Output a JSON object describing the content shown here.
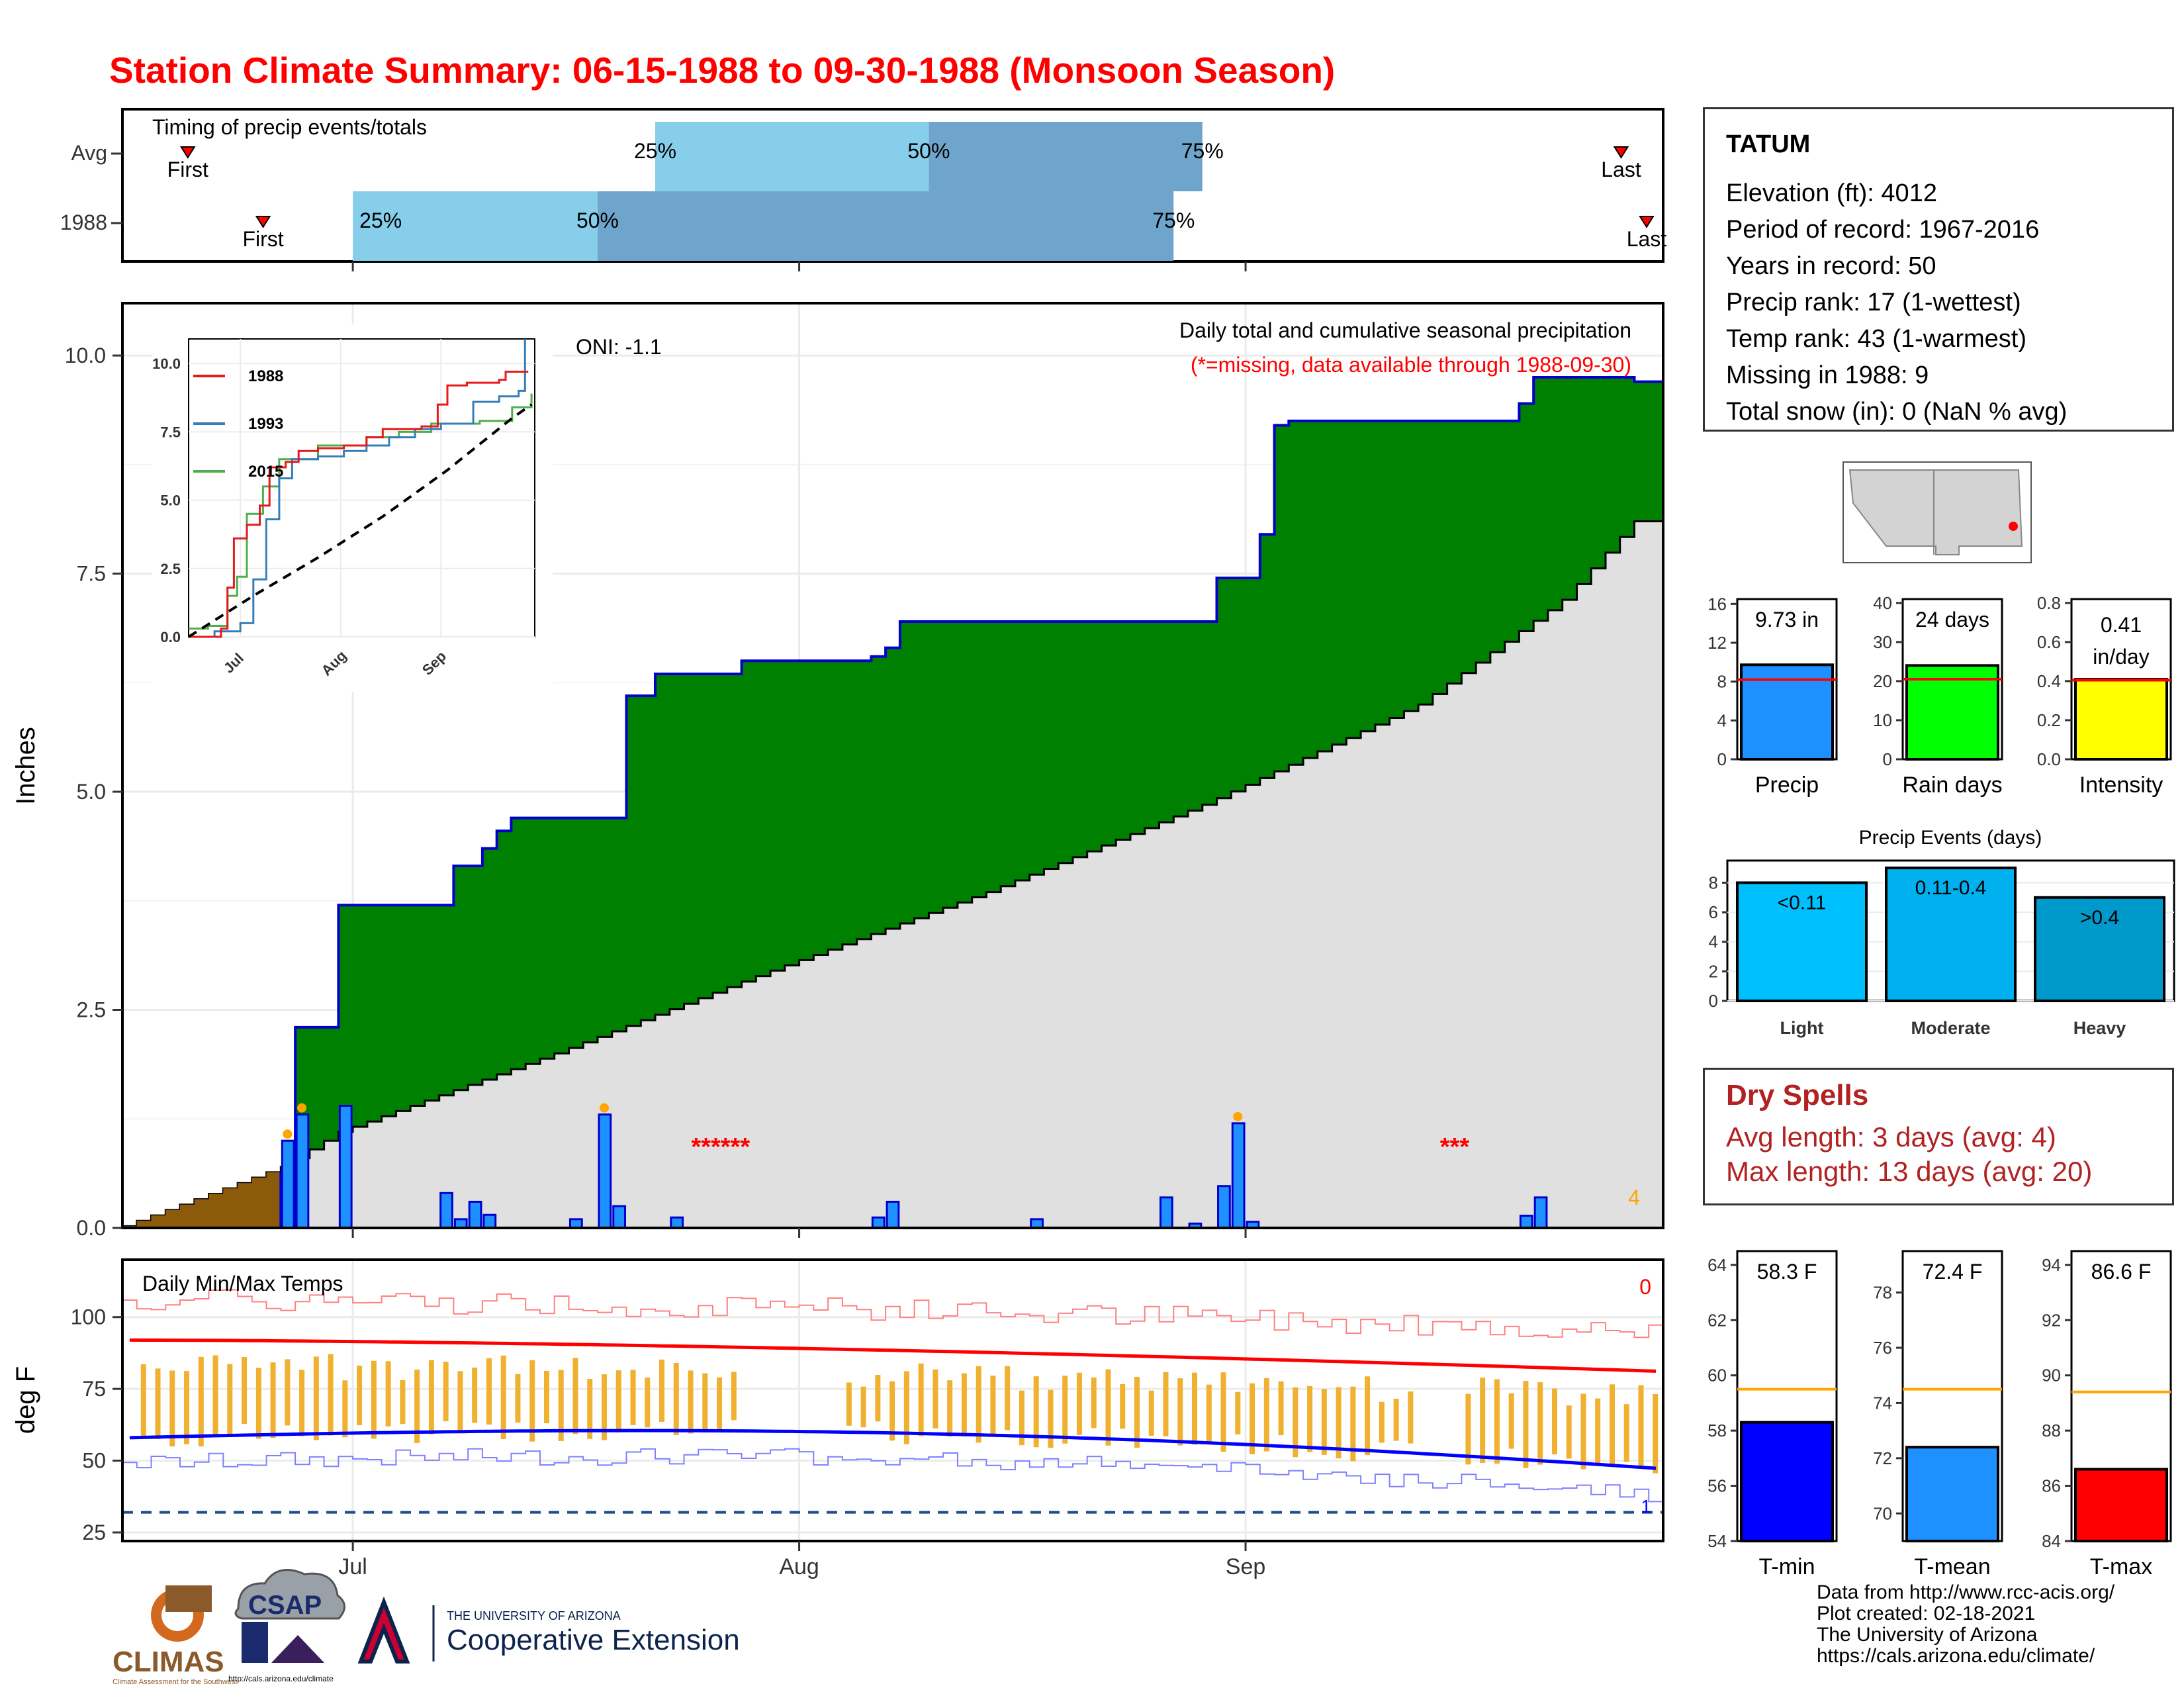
{
  "title": "Station Climate Summary: 06-15-1988 to 09-30-1988 (Monsoon Season)",
  "chart_data": [
    {
      "type": "timeline",
      "name": "Timing of precip events/totals",
      "title": "Timing of precip events/totals",
      "rows": [
        {
          "label": "Avg",
          "first": "06-20",
          "p25": "07-22",
          "p50": "08-10",
          "p75": "08-29",
          "last": "09-28",
          "first_label": "First",
          "last_label": "Last"
        },
        {
          "label": "1988",
          "first": "06-25",
          "p25": "07-01",
          "p50": "07-18",
          "p75": "08-27",
          "last": "09-30",
          "first_label": "First",
          "last_label": "Last"
        }
      ],
      "pct_labels": [
        "25%",
        "50%",
        "75%"
      ]
    },
    {
      "type": "area",
      "title": "Daily total and cumulative seasonal precipitation",
      "subtitle": "(*=missing, data available through 1988-09-30)",
      "ylabel": "Inches",
      "oni": "ONI: -1.1",
      "ylim": [
        0,
        10.6
      ],
      "yticks": [
        "0.0",
        "2.5",
        "5.0",
        "7.5",
        "10.0"
      ],
      "xticks": [
        "Jul",
        "Aug",
        "Sep"
      ],
      "start": "1988-06-15",
      "cumulative_1988": [
        [
          0,
          0
        ],
        [
          11,
          0
        ],
        [
          12,
          2.3
        ],
        [
          15,
          2.3
        ],
        [
          15,
          3.7
        ],
        [
          22,
          3.7
        ],
        [
          23,
          4.15
        ],
        [
          24,
          4.15
        ],
        [
          25,
          4.35
        ],
        [
          26,
          4.55
        ],
        [
          27,
          4.7
        ],
        [
          34,
          4.7
        ],
        [
          35,
          4.72
        ],
        [
          35,
          6.1
        ],
        [
          37,
          6.35
        ],
        [
          42,
          6.35
        ],
        [
          43,
          6.5
        ],
        [
          51,
          6.5
        ],
        [
          52,
          6.55
        ],
        [
          53,
          6.65
        ],
        [
          54,
          6.95
        ],
        [
          71,
          6.95
        ],
        [
          72,
          6.95
        ],
        [
          76,
          7.45
        ],
        [
          77,
          7.45
        ],
        [
          79,
          7.95
        ],
        [
          80,
          9.2
        ],
        [
          81,
          9.25
        ],
        [
          88,
          9.25
        ],
        [
          96,
          9.25
        ],
        [
          97,
          9.45
        ],
        [
          98,
          9.75
        ],
        [
          105,
          9.7
        ]
      ],
      "normal_cumulative": [
        [
          0,
          0.02
        ],
        [
          11,
          0.7
        ],
        [
          15,
          1.1
        ],
        [
          30,
          2.0
        ],
        [
          45,
          2.95
        ],
        [
          60,
          3.85
        ],
        [
          75,
          4.85
        ],
        [
          90,
          6.0
        ],
        [
          100,
          7.2
        ],
        [
          105,
          8.1
        ]
      ],
      "daily_precip": [
        [
          11,
          1.0
        ],
        [
          12,
          1.3
        ],
        [
          15,
          1.4
        ],
        [
          22,
          0.4
        ],
        [
          23,
          0.1
        ],
        [
          24,
          0.3
        ],
        [
          25,
          0.15
        ],
        [
          31,
          0.1
        ],
        [
          33,
          1.3
        ],
        [
          34,
          0.25
        ],
        [
          38,
          0.12
        ],
        [
          52,
          0.12
        ],
        [
          53,
          0.3
        ],
        [
          63,
          0.1
        ],
        [
          72,
          0.35
        ],
        [
          74,
          0.05
        ],
        [
          76,
          0.48
        ],
        [
          77,
          1.2
        ],
        [
          78,
          0.07
        ],
        [
          97,
          0.14
        ],
        [
          98,
          0.35
        ]
      ],
      "missing_markers": [
        "******",
        "***"
      ],
      "corner_value": "4",
      "inset": {
        "type": "line",
        "yticks": [
          "0.0",
          "2.5",
          "5.0",
          "7.5",
          "10.0"
        ],
        "xticks": [
          "Jul",
          "Aug",
          "Sep"
        ],
        "series": [
          {
            "name": "1988",
            "color": "#e41a1c"
          },
          {
            "name": "1993",
            "color": "#377eb8"
          },
          {
            "name": "2015",
            "color": "#4daf4a"
          }
        ]
      }
    },
    {
      "type": "line",
      "title": "Daily Min/Max Temps",
      "ylabel": "deg F",
      "ylim": [
        22,
        120
      ],
      "yticks": [
        "25",
        "50",
        "75",
        "100"
      ],
      "xticks": [
        "Jul",
        "Aug",
        "Sep"
      ],
      "corner_top": "0",
      "corner_bottom": "1",
      "avg_max_start": 92,
      "avg_max_end": 81,
      "avg_min_start": 58,
      "avg_min_end": 47,
      "freeze_line": 32
    },
    {
      "type": "bar",
      "name": "season-totals",
      "panels": [
        {
          "label": "Precip",
          "value_label": "9.73 in",
          "value": 9.73,
          "avg": 8.2,
          "ylim": [
            0,
            16.5
          ],
          "yticks": [
            "0",
            "4",
            "8",
            "12",
            "16"
          ],
          "color": "#1e90ff"
        },
        {
          "label": "Rain days",
          "value_label": "24 days",
          "value": 24,
          "avg": 20.5,
          "ylim": [
            0,
            41
          ],
          "yticks": [
            "0",
            "10",
            "20",
            "30",
            "40"
          ],
          "color": "#00ff00"
        },
        {
          "label": "Intensity",
          "value_label": "0.41 in/day",
          "value": 0.41,
          "avg": 0.405,
          "ylim": [
            0,
            0.82
          ],
          "yticks": [
            "0.0",
            "0.2",
            "0.4",
            "0.6",
            "0.8"
          ],
          "color": "#ffff00"
        }
      ]
    },
    {
      "type": "bar",
      "title": "Precip Events (days)",
      "categories": [
        "Light",
        "Moderate",
        "Heavy"
      ],
      "value_labels": [
        "<0.11",
        "0.11-0.4",
        ">0.4"
      ],
      "values": [
        8,
        9,
        7
      ],
      "ylim": [
        0,
        9.5
      ],
      "yticks": [
        "0",
        "2",
        "4",
        "6",
        "8"
      ]
    },
    {
      "type": "bar",
      "name": "temperature-means",
      "panels": [
        {
          "label": "T-min",
          "value_label": "58.3 F",
          "value": 58.3,
          "avg": 59.5,
          "ylim": [
            54,
            64.5
          ],
          "yticks": [
            "54",
            "56",
            "58",
            "60",
            "62",
            "64"
          ],
          "color": "#0000ff"
        },
        {
          "label": "T-mean",
          "value_label": "72.4 F",
          "value": 72.4,
          "avg": 74.5,
          "ylim": [
            69,
            79.5
          ],
          "yticks": [
            "70",
            "72",
            "74",
            "76",
            "78"
          ],
          "color": "#1e90ff"
        },
        {
          "label": "T-max",
          "value_label": "86.6 F",
          "value": 86.6,
          "avg": 89.4,
          "ylim": [
            84,
            94.5
          ],
          "yticks": [
            "84",
            "86",
            "88",
            "90",
            "92",
            "94"
          ],
          "color": "#ff0000"
        }
      ]
    }
  ],
  "station": {
    "name": "TATUM",
    "lines": [
      "Elevation (ft): 4012",
      "Period of record: 1967-2016",
      "Years in record: 50",
      "Precip rank: 17 (1-wettest)",
      "Temp rank: 43 (1-warmest)",
      "Missing in 1988: 9",
      "Total snow (in): 0 (NaN % avg)"
    ]
  },
  "dry_spells": {
    "title": "Dry Spells",
    "avg": "Avg length: 3 days (avg: 4)",
    "max": "Max length: 13 days (avg: 20)"
  },
  "logos": {
    "climas": "CLIMAS",
    "climas_sub": "Climate Assessment for the Southwest",
    "csap": "CSAP",
    "csap_url": "http://cals.arizona.edu/climate",
    "ua_top": "THE UNIVERSITY OF ARIZONA",
    "ua_main": "Cooperative Extension"
  },
  "credits": [
    "Data from http://www.rcc-acis.org/",
    "Plot created: 02-18-2021",
    "The University of Arizona",
    "https://cals.arizona.edu/climate/"
  ],
  "colors": {
    "title": "#ff0000",
    "green_fill": "#008000",
    "normal_fill": "#e0e0e0",
    "brown_fill": "#8b5a0a",
    "precip_bar": "#1e90ff",
    "p25_bar": "#87ceeb",
    "p50_bar": "#6fa5cd",
    "temp_bar": "#f0b030",
    "dry_spell": "#b22222"
  }
}
